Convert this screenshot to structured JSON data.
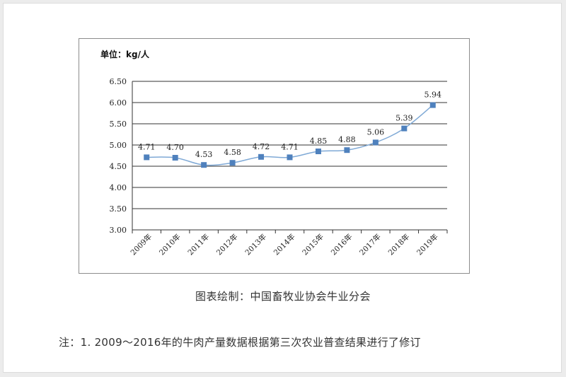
{
  "chart_data": {
    "type": "line",
    "unit_label": "单位：kg/人",
    "categories": [
      "2009年",
      "2010年",
      "2011年",
      "2012年",
      "2013年",
      "2014年",
      "2015年",
      "2016年",
      "2017年",
      "2018年",
      "2019年"
    ],
    "series": [
      {
        "values": [
          4.71,
          4.7,
          4.53,
          4.58,
          4.72,
          4.71,
          4.85,
          4.88,
          5.06,
          5.39,
          5.94
        ]
      }
    ],
    "data_labels": [
      "4.71",
      "4.70",
      "4.53",
      "4.58",
      "4.72",
      "4.71",
      "4.85",
      "4.88",
      "5.06",
      "5.39",
      "5.94"
    ],
    "y_ticks": [
      "3.00",
      "3.50",
      "4.00",
      "4.50",
      "5.00",
      "5.50",
      "6.00",
      "6.50"
    ],
    "ylim": [
      3.0,
      6.5
    ],
    "grid": true,
    "legend": "none",
    "colors": {
      "line": "#7fa9d6",
      "marker": "#4f81bd",
      "grid": "#333333"
    }
  },
  "source": "图表绘制：中国畜牧业协会牛业分会",
  "note": "注：1. 2009～2016年的牛肉产量数据根据第三次农业普查结果进行了修订"
}
